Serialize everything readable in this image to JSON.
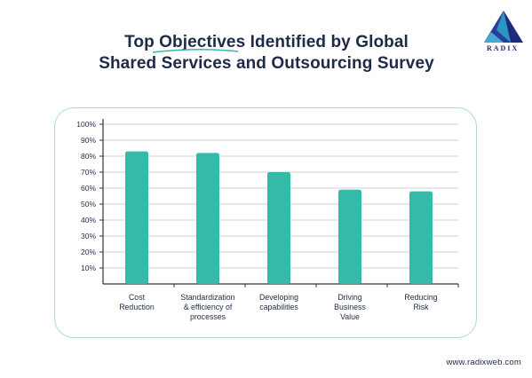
{
  "header": {
    "title_line1": "Top Objectives Identified by Global",
    "title_line2": "Shared Services and Outsourcing Survey",
    "brand": "RADIX",
    "brand_colors": {
      "primary": "#1f2a7a",
      "accent": "#2aa6c9"
    }
  },
  "footer": {
    "url": "www.radixweb.com"
  },
  "colors": {
    "bar": "#35b9a8",
    "axis": "#333333",
    "grid": "#cfcfcf",
    "text": "#1e2a48",
    "card_border": "#a7ddd5"
  },
  "chart_data": {
    "type": "bar",
    "title": "",
    "xlabel": "",
    "ylabel": "",
    "ylim": [
      0,
      100
    ],
    "yticks": [
      "10%",
      "20%",
      "30%",
      "40%",
      "50%",
      "60%",
      "70%",
      "80%",
      "90%",
      "100%"
    ],
    "grid": true,
    "categories": [
      [
        "Cost",
        "Reduction"
      ],
      [
        "Standardization",
        "& efficiency of",
        "processes"
      ],
      [
        "Developing",
        "capabilities"
      ],
      [
        "Driving",
        "Business",
        "Value"
      ],
      [
        "Reducing",
        "Risk"
      ]
    ],
    "values": [
      83,
      82,
      70,
      59,
      58
    ]
  }
}
